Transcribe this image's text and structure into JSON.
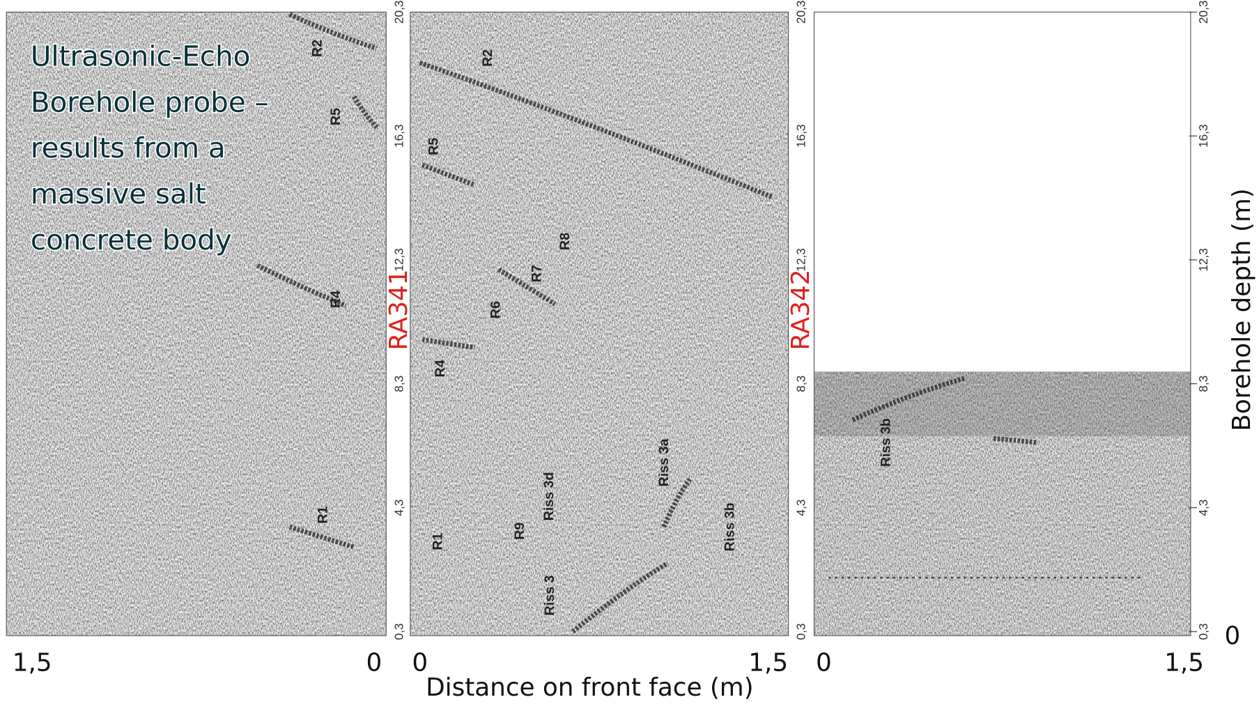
{
  "title_lines": [
    "Ultrasonic-Echo",
    "Borehole probe –",
    "results from a",
    "massive salt",
    "concrete body"
  ],
  "panels": [
    {
      "labels": [
        "R2",
        "R5",
        "R4",
        "R1"
      ],
      "x_labels": [
        "1,5",
        "0"
      ]
    },
    {
      "name": "RA341",
      "depth_ticks": [
        "20,3",
        "16,3",
        "12,3",
        "8,3",
        "4,3",
        "0,3"
      ],
      "labels": [
        "R2",
        "R5",
        "R8",
        "R7",
        "R6",
        "R4",
        "R1",
        "R9",
        "Riss 3d",
        "Riss 3",
        "Riss 3a",
        "Riss 3b"
      ],
      "x_labels": [
        "0",
        "1,5"
      ]
    },
    {
      "name": "RA342",
      "depth_ticks": [
        "20,3",
        "16,3",
        "12,3",
        "8,3",
        "4,3",
        "0,3"
      ],
      "labels": [
        "Riss 3b"
      ],
      "x_labels": [
        "0",
        "1,5"
      ]
    }
  ],
  "right_axis": {
    "ticks": [
      "20,3",
      "16,3",
      "12,3",
      "8,3",
      "4,3",
      "0,3"
    ],
    "label": "Borehole depth (m)",
    "zero": "0"
  },
  "x_axis_label": "Distance on front face (m)"
}
